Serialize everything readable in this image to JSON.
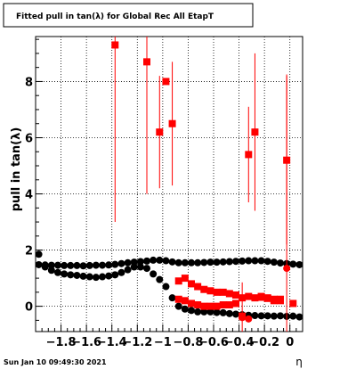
{
  "chart_data": {
    "type": "scatter",
    "title": "Fitted pull in tan(λ) for Global Rec All EtapT",
    "ylabel": "pull in tan(λ)",
    "xlabel": "η",
    "xlim": [
      -2.0,
      0.1
    ],
    "ylim": [
      -0.9,
      9.6
    ],
    "grid": true,
    "x_tick_labels": [
      "−1.8",
      "−1.6",
      "−1.4",
      "−1.2",
      "−1",
      "−0.8",
      "−0.6",
      "−0.4",
      "−0.2",
      "0"
    ],
    "x_ticks": [
      -1.8,
      -1.6,
      -1.4,
      -1.2,
      -1.0,
      -0.8,
      -0.6,
      -0.4,
      -0.2,
      0.0
    ],
    "y_tick_labels": [
      "0",
      "2",
      "4",
      "6",
      "8"
    ],
    "y_ticks": [
      0,
      2,
      4,
      6,
      8
    ],
    "series": [
      {
        "color": "#000000",
        "marker": "circle",
        "x": [
          -1.975,
          -1.925,
          -1.875,
          -1.825,
          -1.775,
          -1.725,
          -1.675,
          -1.625,
          -1.575,
          -1.525,
          -1.475,
          -1.425,
          -1.375,
          -1.325,
          -1.275,
          -1.225,
          -1.175,
          -1.125,
          -1.075,
          -1.025,
          -0.975,
          -0.925,
          -0.875,
          -0.825,
          -0.775,
          -0.725,
          -0.675,
          -0.625,
          -0.575,
          -0.525,
          -0.475,
          -0.425,
          -0.375,
          -0.325,
          -0.275,
          -0.225,
          -0.175,
          -0.125,
          -0.075,
          -0.025,
          0.025,
          0.075
        ],
        "y": [
          1.48,
          1.47,
          1.46,
          1.46,
          1.45,
          1.45,
          1.45,
          1.44,
          1.45,
          1.46,
          1.46,
          1.47,
          1.49,
          1.52,
          1.55,
          1.57,
          1.59,
          1.61,
          1.64,
          1.64,
          1.62,
          1.58,
          1.55,
          1.55,
          1.55,
          1.55,
          1.56,
          1.57,
          1.57,
          1.58,
          1.59,
          1.6,
          1.61,
          1.62,
          1.62,
          1.62,
          1.6,
          1.57,
          1.54,
          1.52,
          1.5,
          1.48
        ]
      },
      {
        "color": "#000000",
        "marker": "circle",
        "x": [
          -1.975,
          -1.925,
          -1.875,
          -1.825,
          -1.775,
          -1.725,
          -1.675,
          -1.625,
          -1.575,
          -1.525,
          -1.475,
          -1.425,
          -1.375,
          -1.325,
          -1.275,
          -1.225,
          -1.175,
          -1.125,
          -1.075,
          -1.025,
          -0.975,
          -0.925,
          -0.875,
          -0.825,
          -0.775,
          -0.725,
          -0.675,
          -0.625,
          -0.575,
          -0.525,
          -0.475,
          -0.425,
          -0.375,
          -0.325,
          -0.275,
          -0.225,
          -0.175,
          -0.125,
          -0.075,
          -0.025,
          0.025,
          0.075
        ],
        "y": [
          1.85,
          1.4,
          1.28,
          1.2,
          1.15,
          1.12,
          1.1,
          1.07,
          1.05,
          1.03,
          1.05,
          1.08,
          1.12,
          1.2,
          1.3,
          1.4,
          1.4,
          1.35,
          1.15,
          0.95,
          0.7,
          0.3,
          0.0,
          -0.1,
          -0.15,
          -0.2,
          -0.2,
          -0.2,
          -0.22,
          -0.23,
          -0.26,
          -0.28,
          -0.3,
          -0.32,
          -0.33,
          -0.34,
          -0.34,
          -0.35,
          -0.34,
          -0.36,
          -0.35,
          -0.38
        ]
      },
      {
        "color": "#ff0000",
        "marker": "square",
        "x": [
          -1.375,
          -1.125,
          -1.025,
          -0.975,
          -0.925,
          -0.875,
          -0.825,
          -0.775,
          -0.725,
          -0.675,
          -0.625,
          -0.575,
          -0.525,
          -0.475,
          -0.425,
          -0.375,
          -0.325,
          -0.275,
          -0.225,
          -0.175,
          -0.125,
          -0.075,
          -0.025,
          0.025
        ],
        "y": [
          9.3,
          8.7,
          6.2,
          8.0,
          6.5,
          0.9,
          1.0,
          0.8,
          0.7,
          0.6,
          0.55,
          0.5,
          0.5,
          0.45,
          0.4,
          0.3,
          0.35,
          0.3,
          0.32,
          0.28,
          0.25,
          0.2,
          5.2,
          0.1
        ],
        "err": [
          6.3,
          4.7,
          2.0,
          0.0,
          2.2,
          0.0,
          0.0,
          0.0,
          0.0,
          0.0,
          0.0,
          0.0,
          0.0,
          0.0,
          0.0,
          0.0,
          0.0,
          0.0,
          0.0,
          0.0,
          0.0,
          0.0,
          3.0,
          0.0
        ]
      },
      {
        "color": "#ff0000",
        "marker": "square",
        "x": [
          -0.875,
          -0.825,
          -0.775,
          -0.725,
          -0.675,
          -0.625,
          -0.575,
          -0.525,
          -0.475,
          -0.425,
          -0.375,
          -0.325,
          -0.275,
          -0.225,
          -0.175,
          -0.125,
          -0.075
        ],
        "y": [
          0.25,
          0.2,
          0.1,
          0.05,
          0.0,
          0.0,
          0.0,
          0.05,
          0.05,
          0.1,
          -0.35,
          5.4,
          6.2,
          0.35,
          0.3,
          0.2,
          0.25
        ],
        "err": [
          0.0,
          0.0,
          0.0,
          0.0,
          0.0,
          0.0,
          0.0,
          0.0,
          0.0,
          0.0,
          1.2,
          1.7,
          2.8,
          0.0,
          0.0,
          0.0,
          0.0
        ]
      },
      {
        "color": "#ff0000",
        "marker": "circle",
        "x": [
          -0.375,
          -0.325,
          -0.025
        ],
        "y": [
          -0.4,
          -0.45,
          1.35
        ],
        "err": [
          0.0,
          0.0,
          6.9
        ]
      }
    ],
    "timestamp": "Sun Jan 10 09:49:30 2021"
  }
}
